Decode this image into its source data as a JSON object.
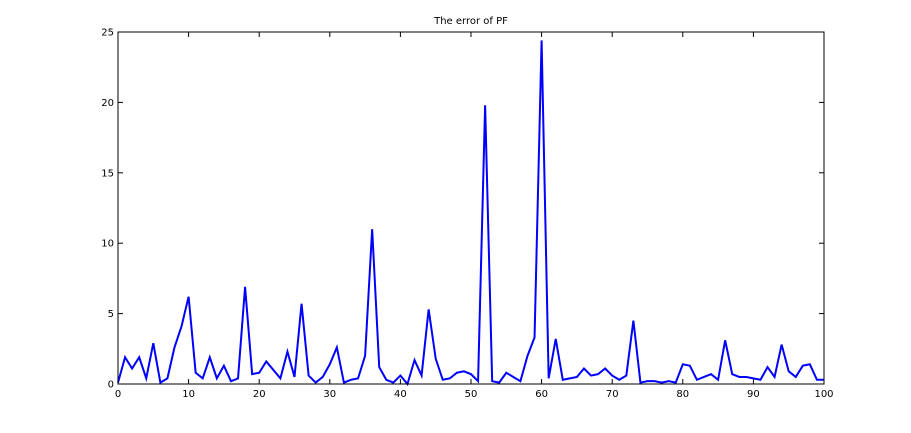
{
  "chart_data": {
    "type": "line",
    "title": "The error of PF",
    "xlabel": "",
    "ylabel": "",
    "xlim": [
      0,
      100
    ],
    "ylim": [
      0,
      25
    ],
    "xticks": [
      0,
      10,
      20,
      30,
      40,
      50,
      60,
      70,
      80,
      90,
      100
    ],
    "yticks": [
      0,
      5,
      10,
      15,
      20,
      25
    ],
    "grid": false,
    "legend": "none",
    "series": [
      {
        "color": "#0000ff",
        "x": [
          0,
          1,
          2,
          3,
          4,
          5,
          6,
          7,
          8,
          9,
          10,
          11,
          12,
          13,
          14,
          15,
          16,
          17,
          18,
          19,
          20,
          21,
          22,
          23,
          24,
          25,
          26,
          27,
          28,
          29,
          30,
          31,
          32,
          33,
          34,
          35,
          36,
          37,
          38,
          39,
          40,
          41,
          42,
          43,
          44,
          45,
          46,
          47,
          48,
          49,
          50,
          51,
          52,
          53,
          54,
          55,
          56,
          57,
          58,
          59,
          60,
          61,
          62,
          63,
          64,
          65,
          66,
          67,
          68,
          69,
          70,
          71,
          72,
          73,
          74,
          75,
          76,
          77,
          78,
          79,
          80,
          81,
          82,
          83,
          84,
          85,
          86,
          87,
          88,
          89,
          90,
          91,
          92,
          93,
          94,
          95,
          96,
          97,
          98,
          99,
          100
        ],
        "values": [
          0.1,
          1.9,
          1.1,
          1.9,
          0.4,
          2.9,
          0.1,
          0.4,
          2.6,
          4.1,
          6.2,
          0.8,
          0.4,
          1.9,
          0.4,
          1.3,
          0.2,
          0.4,
          6.9,
          0.7,
          0.8,
          1.6,
          1.0,
          0.4,
          2.3,
          0.5,
          5.7,
          0.6,
          0.1,
          0.5,
          1.4,
          2.6,
          0.1,
          0.3,
          0.4,
          2.0,
          11.0,
          1.2,
          0.3,
          0.1,
          0.6,
          0.0,
          1.7,
          0.6,
          5.3,
          1.8,
          0.3,
          0.4,
          0.8,
          0.9,
          0.7,
          0.2,
          19.8,
          0.2,
          0.1,
          0.8,
          0.5,
          0.2,
          2.0,
          3.3,
          24.4,
          0.4,
          3.2,
          0.3,
          0.4,
          0.5,
          1.1,
          0.6,
          0.7,
          1.1,
          0.6,
          0.3,
          0.6,
          4.5,
          0.1,
          0.2,
          0.2,
          0.1,
          0.2,
          0.1,
          1.4,
          1.3,
          0.3,
          0.5,
          0.7,
          0.3,
          3.1,
          0.7,
          0.5,
          0.5,
          0.4,
          0.3,
          1.2,
          0.5,
          2.8,
          0.9,
          0.5,
          1.3,
          1.4,
          0.3,
          0.3
        ]
      }
    ]
  }
}
